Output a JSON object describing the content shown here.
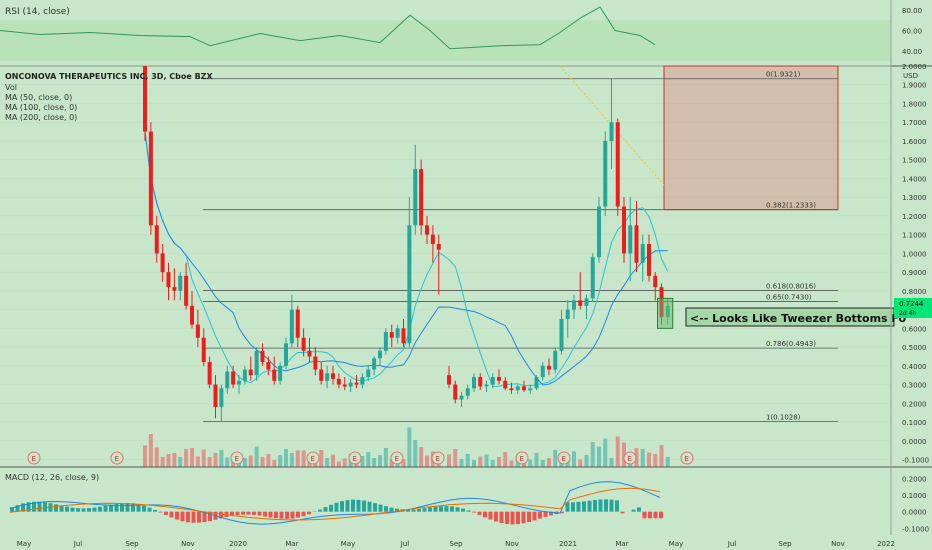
{
  "chart_data": {
    "type": "candlestick",
    "title": "ONCONOVA THERAPEUTICS INC, 3D, Cboe BZX",
    "legend": [
      "Vol",
      "MA (50, close, 0)",
      "MA (100, close, 0)",
      "MA (200, close, 0)"
    ],
    "currency": "USD",
    "price_ticks": [
      "2.0000",
      "1.9000",
      "1.8000",
      "1.7000",
      "1.6000",
      "1.5000",
      "1.4000",
      "1.3000",
      "1.2000",
      "1.1000",
      "1.0000",
      "0.9000",
      "0.8000",
      "0.7000",
      "0.6000",
      "0.5000",
      "0.4000",
      "0.3000",
      "0.2000",
      "0.1000",
      "0.0000",
      "-0.1000"
    ],
    "price_range": [
      -0.14,
      2.0
    ],
    "last_price": "0.7244",
    "last_price_sub": "2d 4h",
    "x_labels": [
      "May",
      "Jul",
      "Sep",
      "Nov",
      "2020",
      "Mar",
      "May",
      "Jul",
      "Sep",
      "Nov",
      "2021",
      "Mar",
      "May",
      "Jul",
      "Sep",
      "Nov",
      "2022"
    ],
    "fib_levels": [
      {
        "label": "0(1.9321)",
        "value": 1.9321
      },
      {
        "label": "0.382(1.2333)",
        "value": 1.2333
      },
      {
        "label": "0.618(0.8016)",
        "value": 0.8016
      },
      {
        "label": "0.65(0.7430)",
        "value": 0.743
      },
      {
        "label": "0.786(0.4943)",
        "value": 0.4943
      },
      {
        "label": "1(0.1028)",
        "value": 0.1028
      }
    ],
    "annotation": "<-- Looks Like Tweezer Bottoms Fo",
    "target_box": [
      1.2333,
      2.0
    ],
    "rsi": {
      "title": "RSI (14, close)",
      "ticks": [
        "80.00",
        "60.00",
        "40.00"
      ],
      "range": [
        25,
        90
      ],
      "band": [
        30,
        70
      ]
    },
    "macd": {
      "title": "MACD (12, 26, close, 9)",
      "ticks": [
        "0.2000",
        "0.1000",
        "0.0000",
        "-0.1000"
      ],
      "range": [
        -0.14,
        0.25
      ]
    },
    "candles": [
      {
        "o": 2.0,
        "h": 2.0,
        "l": 1.6,
        "c": 1.65
      },
      {
        "o": 1.65,
        "h": 1.7,
        "l": 1.1,
        "c": 1.15
      },
      {
        "o": 1.15,
        "h": 1.2,
        "l": 0.95,
        "c": 1.0
      },
      {
        "o": 1.0,
        "h": 1.05,
        "l": 0.85,
        "c": 0.9
      },
      {
        "o": 0.9,
        "h": 0.95,
        "l": 0.75,
        "c": 0.82
      },
      {
        "o": 0.82,
        "h": 0.92,
        "l": 0.75,
        "c": 0.8
      },
      {
        "o": 0.8,
        "h": 0.9,
        "l": 0.75,
        "c": 0.88
      },
      {
        "o": 0.88,
        "h": 0.95,
        "l": 0.7,
        "c": 0.72
      },
      {
        "o": 0.72,
        "h": 0.8,
        "l": 0.6,
        "c": 0.62
      },
      {
        "o": 0.62,
        "h": 0.7,
        "l": 0.5,
        "c": 0.55
      },
      {
        "o": 0.55,
        "h": 0.6,
        "l": 0.4,
        "c": 0.42
      },
      {
        "o": 0.42,
        "h": 0.45,
        "l": 0.28,
        "c": 0.3
      },
      {
        "o": 0.3,
        "h": 0.35,
        "l": 0.12,
        "c": 0.18
      },
      {
        "o": 0.18,
        "h": 0.3,
        "l": 0.1,
        "c": 0.28
      },
      {
        "o": 0.28,
        "h": 0.4,
        "l": 0.25,
        "c": 0.37
      },
      {
        "o": 0.37,
        "h": 0.4,
        "l": 0.28,
        "c": 0.3
      },
      {
        "o": 0.3,
        "h": 0.35,
        "l": 0.25,
        "c": 0.32
      },
      {
        "o": 0.32,
        "h": 0.4,
        "l": 0.3,
        "c": 0.38
      },
      {
        "o": 0.38,
        "h": 0.45,
        "l": 0.32,
        "c": 0.35
      },
      {
        "o": 0.35,
        "h": 0.5,
        "l": 0.32,
        "c": 0.48
      },
      {
        "o": 0.48,
        "h": 0.52,
        "l": 0.4,
        "c": 0.42
      },
      {
        "o": 0.42,
        "h": 0.45,
        "l": 0.35,
        "c": 0.38
      },
      {
        "o": 0.38,
        "h": 0.45,
        "l": 0.3,
        "c": 0.32
      },
      {
        "o": 0.32,
        "h": 0.42,
        "l": 0.3,
        "c": 0.4
      },
      {
        "o": 0.4,
        "h": 0.55,
        "l": 0.38,
        "c": 0.52
      },
      {
        "o": 0.52,
        "h": 0.78,
        "l": 0.5,
        "c": 0.7
      },
      {
        "o": 0.7,
        "h": 0.72,
        "l": 0.5,
        "c": 0.55
      },
      {
        "o": 0.55,
        "h": 0.6,
        "l": 0.45,
        "c": 0.48
      },
      {
        "o": 0.48,
        "h": 0.55,
        "l": 0.42,
        "c": 0.45
      },
      {
        "o": 0.45,
        "h": 0.5,
        "l": 0.35,
        "c": 0.38
      },
      {
        "o": 0.38,
        "h": 0.42,
        "l": 0.3,
        "c": 0.32
      },
      {
        "o": 0.32,
        "h": 0.4,
        "l": 0.28,
        "c": 0.36
      },
      {
        "o": 0.36,
        "h": 0.4,
        "l": 0.3,
        "c": 0.33
      },
      {
        "o": 0.33,
        "h": 0.36,
        "l": 0.28,
        "c": 0.3
      },
      {
        "o": 0.3,
        "h": 0.34,
        "l": 0.27,
        "c": 0.29
      },
      {
        "o": 0.29,
        "h": 0.33,
        "l": 0.26,
        "c": 0.31
      },
      {
        "o": 0.31,
        "h": 0.35,
        "l": 0.28,
        "c": 0.3
      },
      {
        "o": 0.3,
        "h": 0.36,
        "l": 0.28,
        "c": 0.34
      },
      {
        "o": 0.34,
        "h": 0.4,
        "l": 0.32,
        "c": 0.38
      },
      {
        "o": 0.38,
        "h": 0.45,
        "l": 0.35,
        "c": 0.44
      },
      {
        "o": 0.44,
        "h": 0.5,
        "l": 0.4,
        "c": 0.48
      },
      {
        "o": 0.48,
        "h": 0.6,
        "l": 0.46,
        "c": 0.58
      },
      {
        "o": 0.58,
        "h": 0.62,
        "l": 0.5,
        "c": 0.55
      },
      {
        "o": 0.55,
        "h": 0.62,
        "l": 0.52,
        "c": 0.6
      },
      {
        "o": 0.6,
        "h": 0.65,
        "l": 0.5,
        "c": 0.52
      },
      {
        "o": 0.52,
        "h": 1.3,
        "l": 0.5,
        "c": 1.15
      },
      {
        "o": 1.15,
        "h": 1.58,
        "l": 1.1,
        "c": 1.45
      },
      {
        "o": 1.45,
        "h": 1.5,
        "l": 1.1,
        "c": 1.15
      },
      {
        "o": 1.15,
        "h": 1.2,
        "l": 1.05,
        "c": 1.1
      },
      {
        "o": 1.1,
        "h": 1.15,
        "l": 0.95,
        "c": 1.05
      },
      {
        "o": 1.05,
        "h": 1.1,
        "l": 0.78,
        "c": 1.02
      },
      {
        "o": 0.35,
        "h": 0.4,
        "l": 0.28,
        "c": 0.3
      },
      {
        "o": 0.3,
        "h": 0.32,
        "l": 0.2,
        "c": 0.22
      },
      {
        "o": 0.22,
        "h": 0.26,
        "l": 0.18,
        "c": 0.24
      },
      {
        "o": 0.24,
        "h": 0.3,
        "l": 0.22,
        "c": 0.28
      },
      {
        "o": 0.28,
        "h": 0.36,
        "l": 0.26,
        "c": 0.34
      },
      {
        "o": 0.34,
        "h": 0.36,
        "l": 0.27,
        "c": 0.29
      },
      {
        "o": 0.29,
        "h": 0.32,
        "l": 0.26,
        "c": 0.3
      },
      {
        "o": 0.3,
        "h": 0.36,
        "l": 0.28,
        "c": 0.34
      },
      {
        "o": 0.34,
        "h": 0.38,
        "l": 0.3,
        "c": 0.32
      },
      {
        "o": 0.32,
        "h": 0.34,
        "l": 0.27,
        "c": 0.28
      },
      {
        "o": 0.28,
        "h": 0.31,
        "l": 0.25,
        "c": 0.27
      },
      {
        "o": 0.27,
        "h": 0.3,
        "l": 0.25,
        "c": 0.29
      },
      {
        "o": 0.29,
        "h": 0.32,
        "l": 0.26,
        "c": 0.27
      },
      {
        "o": 0.27,
        "h": 0.3,
        "l": 0.25,
        "c": 0.28
      },
      {
        "o": 0.28,
        "h": 0.35,
        "l": 0.27,
        "c": 0.34
      },
      {
        "o": 0.34,
        "h": 0.42,
        "l": 0.32,
        "c": 0.4
      },
      {
        "o": 0.4,
        "h": 0.44,
        "l": 0.35,
        "c": 0.38
      },
      {
        "o": 0.38,
        "h": 0.5,
        "l": 0.36,
        "c": 0.48
      },
      {
        "o": 0.48,
        "h": 0.7,
        "l": 0.46,
        "c": 0.65
      },
      {
        "o": 0.65,
        "h": 0.75,
        "l": 0.55,
        "c": 0.7
      },
      {
        "o": 0.7,
        "h": 0.78,
        "l": 0.65,
        "c": 0.75
      },
      {
        "o": 0.75,
        "h": 0.9,
        "l": 0.7,
        "c": 0.72
      },
      {
        "o": 0.72,
        "h": 0.78,
        "l": 0.65,
        "c": 0.76
      },
      {
        "o": 0.76,
        "h": 1.0,
        "l": 0.74,
        "c": 0.98
      },
      {
        "o": 0.98,
        "h": 1.3,
        "l": 0.95,
        "c": 1.25
      },
      {
        "o": 1.25,
        "h": 1.65,
        "l": 1.2,
        "c": 1.6
      },
      {
        "o": 1.6,
        "h": 1.93,
        "l": 1.45,
        "c": 1.7
      },
      {
        "o": 1.7,
        "h": 1.72,
        "l": 1.2,
        "c": 1.25
      },
      {
        "o": 1.25,
        "h": 1.3,
        "l": 0.95,
        "c": 1.0
      },
      {
        "o": 1.0,
        "h": 1.3,
        "l": 0.85,
        "c": 1.15
      },
      {
        "o": 1.15,
        "h": 1.28,
        "l": 0.9,
        "c": 0.95
      },
      {
        "o": 0.95,
        "h": 1.1,
        "l": 0.85,
        "c": 1.05
      },
      {
        "o": 1.05,
        "h": 1.1,
        "l": 0.85,
        "c": 0.88
      },
      {
        "o": 0.88,
        "h": 0.9,
        "l": 0.75,
        "c": 0.82
      },
      {
        "o": 0.82,
        "h": 0.84,
        "l": 0.62,
        "c": 0.66
      },
      {
        "o": 0.66,
        "h": 0.76,
        "l": 0.62,
        "c": 0.72
      }
    ]
  }
}
